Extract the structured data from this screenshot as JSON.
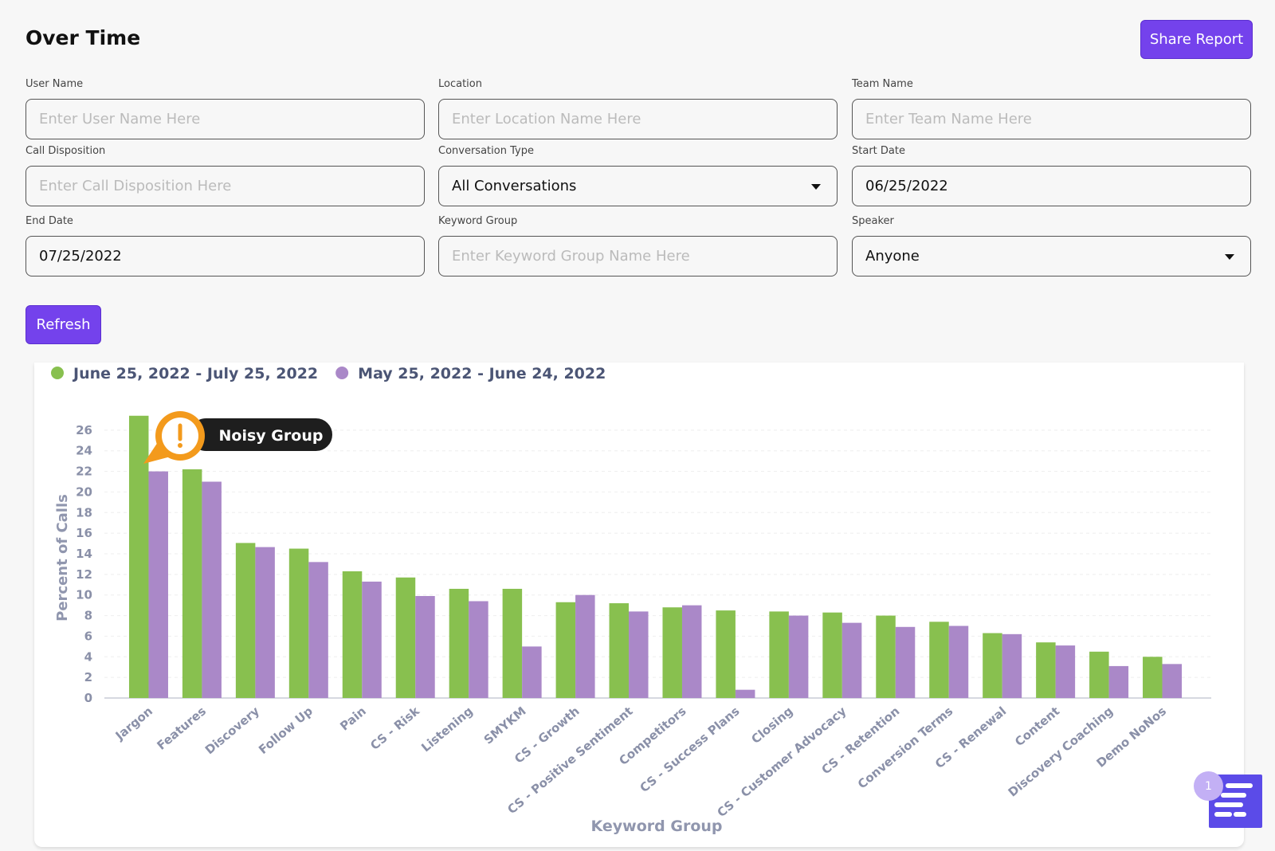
{
  "header": {
    "title": "Over Time",
    "share_button": "Share Report"
  },
  "filters": [
    {
      "label": "User Name",
      "placeholder": "Enter User Name Here"
    },
    {
      "label": "Location",
      "placeholder": "Enter Location Name Here"
    },
    {
      "label": "Team Name",
      "placeholder": "Enter Team Name Here"
    },
    {
      "label": "Call Disposition",
      "placeholder": "Enter Call Disposition Here"
    },
    {
      "label": "Conversation Type",
      "value": "All Conversations"
    },
    {
      "label": "Start Date",
      "value": "06/25/2022"
    },
    {
      "label": "End Date",
      "value": "07/25/2022"
    },
    {
      "label": "Keyword Group",
      "placeholder": "Enter Keyword Group Name Here"
    },
    {
      "label": "Speaker",
      "value": "Anyone"
    }
  ],
  "dropdowns": [
    4,
    8
  ],
  "refresh_button": "Refresh",
  "chart_data": {
    "type": "bar",
    "y_label": "Percent of Calls",
    "x_label": "Keyword Group",
    "annotation": "Noisy Group",
    "categories": [
      "Jargon",
      "Features",
      "Discovery",
      "Follow Up",
      "Pain",
      "CS - Risk",
      "Listening",
      "SMYKM",
      "CS - Growth",
      "CS - Positive Sentiment",
      "Competitors",
      "CS - Success Plans",
      "Closing",
      "CS - Customer Advocacy",
      "CS - Retention",
      "Conversion Terms",
      "CS - Renewal",
      "Content",
      "Discovery Coaching",
      "Demo NoNos"
    ],
    "series": [
      {
        "name": "June 25, 2022 - July 25, 2022",
        "color": "#88c04f",
        "values": [
          27.4,
          22.2,
          15.05,
          14.5,
          12.3,
          11.7,
          10.6,
          10.6,
          9.3,
          9.2,
          8.8,
          8.5,
          8.4,
          8.3,
          8.0,
          7.4,
          6.3,
          5.4,
          4.5,
          4.0
        ]
      },
      {
        "name": "May 25, 2022 - June 24, 2022",
        "color": "#aa88c8",
        "values": [
          22,
          21.0,
          14.65,
          13.2,
          11.3,
          9.9,
          9.4,
          5.0,
          10.0,
          8.4,
          9.0,
          0.8,
          8.0,
          7.3,
          6.9,
          7.0,
          6.2,
          5.1,
          3.1,
          3.3
        ]
      }
    ],
    "ylim": [
      0,
      28
    ],
    "yticks": [
      0,
      2,
      4,
      6,
      8,
      10,
      12,
      14,
      16,
      18,
      20,
      22,
      24,
      26
    ],
    "grid": true
  },
  "notification_count": "1"
}
